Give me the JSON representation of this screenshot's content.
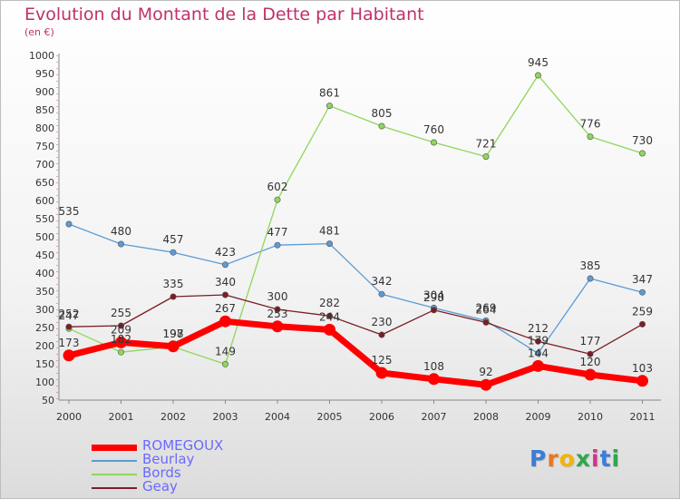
{
  "title": "Evolution du Montant de la Dette par Habitant",
  "subtitle": "(en €)",
  "brand": {
    "text": "Proxiti",
    "letter_colors": [
      "#3b7dd8",
      "#e8771e",
      "#f4b400",
      "#2ea84a",
      "#d6338a",
      "#3b7dd8",
      "#2ea84a"
    ]
  },
  "chart_data": {
    "type": "line",
    "title": "Evolution du Montant de la Dette par Habitant",
    "subtitle": "(en €)",
    "x": [
      "2000",
      "2001",
      "2002",
      "2003",
      "2004",
      "2005",
      "2006",
      "2007",
      "2008",
      "2009",
      "2010",
      "2011"
    ],
    "y_ticks": [
      50,
      100,
      150,
      200,
      250,
      300,
      350,
      400,
      450,
      500,
      550,
      600,
      650,
      700,
      750,
      800,
      850,
      900,
      950,
      1000
    ],
    "ylim": [
      50,
      1000
    ],
    "grid": false,
    "legend_position": "bottom-left",
    "series": [
      {
        "name": "ROMEGOUX",
        "color": "#ff0000",
        "values": [
          173,
          209,
          198,
          267,
          253,
          244,
          125,
          108,
          92,
          144,
          120,
          103
        ]
      },
      {
        "name": "Beurlay",
        "color": "#5b9bd5",
        "values": [
          535,
          480,
          457,
          423,
          477,
          481,
          342,
          304,
          269,
          179,
          385,
          347
        ]
      },
      {
        "name": "Bords",
        "color": "#8fd65b",
        "values": [
          247,
          182,
          197,
          149,
          602,
          861,
          805,
          760,
          721,
          945,
          776,
          730
        ]
      },
      {
        "name": "Geay",
        "color": "#7b1e24",
        "values": [
          252,
          255,
          335,
          340,
          300,
          282,
          230,
          298,
          264,
          212,
          177,
          259
        ]
      }
    ]
  }
}
